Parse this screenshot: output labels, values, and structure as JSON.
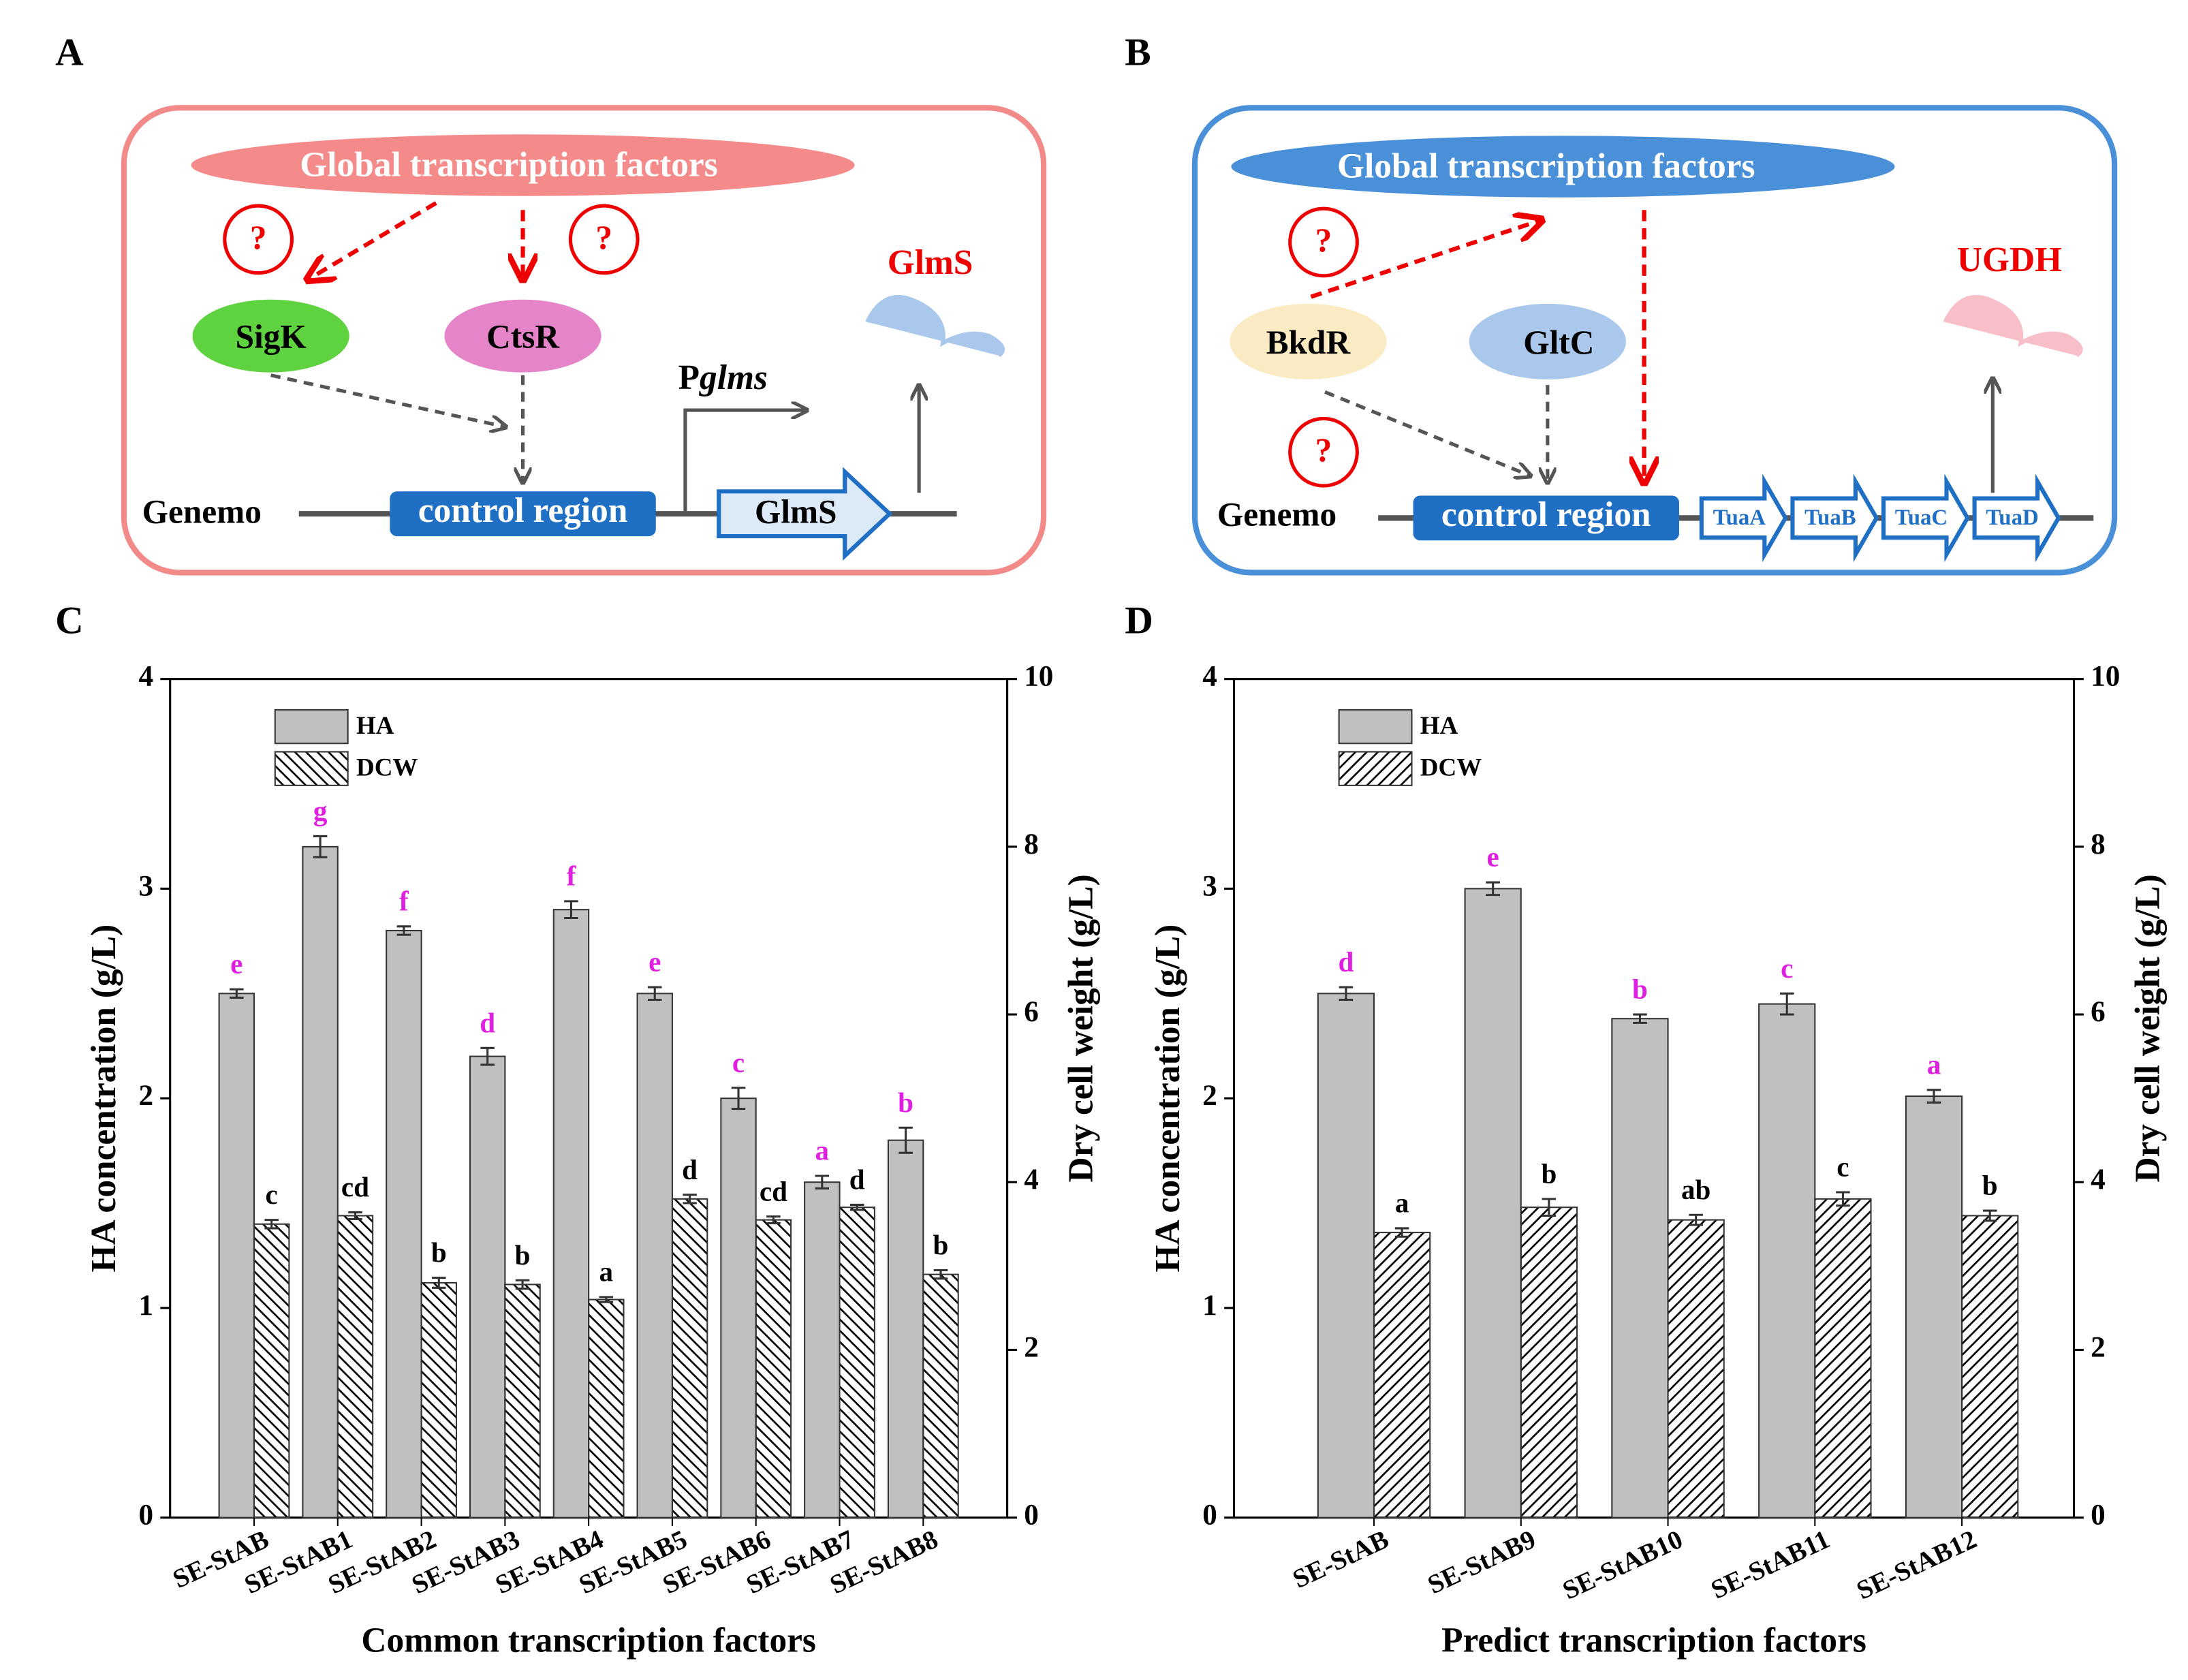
{
  "panels": [
    "A",
    "B",
    "C",
    "D"
  ],
  "diagram_a": {
    "cloud": "Global transcription factors",
    "questions": [
      "?",
      "?"
    ],
    "factors": [
      "SigK",
      "CtsR"
    ],
    "product": "GlmS",
    "promoter_p": "P",
    "promoter_name": "glms",
    "genome": "Genemo",
    "control": "control region",
    "gene": "GlmS"
  },
  "diagram_b": {
    "cloud": "Global transcription factors",
    "questions": [
      "?",
      "?"
    ],
    "factors": [
      "BkdR",
      "GltC"
    ],
    "product": "UGDH",
    "genome": "Genemo",
    "control": "control region",
    "genes": [
      "TuaA",
      "TuaB",
      "TuaC",
      "TuaD"
    ]
  },
  "chart_data": [
    {
      "type": "bar",
      "xlabel": "Common transcription factors",
      "ylabel": "HA concentration (g/L)",
      "y2label": "Dry cell weight (g/L)",
      "categories": [
        "SE-StAB",
        "SE-StAB1",
        "SE-StAB2",
        "SE-StAB3",
        "SE-StAB4",
        "SE-StAB5",
        "SE-StAB6",
        "SE-StAB7",
        "SE-StAB8"
      ],
      "ylim": [
        0,
        4
      ],
      "yticks": [
        0,
        1,
        2,
        3,
        4
      ],
      "y2lim": [
        0,
        10
      ],
      "y2ticks": [
        0,
        2,
        4,
        6,
        8,
        10
      ],
      "series": [
        {
          "name": "HA",
          "color": "#c0c0c0",
          "values": [
            2.5,
            3.2,
            2.8,
            2.2,
            2.9,
            2.5,
            2.0,
            1.6,
            1.8
          ],
          "errors": [
            0.02,
            0.05,
            0.02,
            0.04,
            0.04,
            0.03,
            0.05,
            0.03,
            0.06
          ],
          "annotations": [
            "e",
            "g",
            "f",
            "d",
            "f",
            "e",
            "c",
            "a",
            "b"
          ],
          "annotation_color": "#e020e0"
        },
        {
          "name": "DCW",
          "color": "#ffffff",
          "hatch": "backslash",
          "axis": "y2",
          "values": [
            3.5,
            3.6,
            2.8,
            2.78,
            2.6,
            3.8,
            3.55,
            3.7,
            2.9
          ],
          "errors": [
            0.05,
            0.04,
            0.06,
            0.05,
            0.03,
            0.05,
            0.04,
            0.03,
            0.05
          ],
          "annotations": [
            "c",
            "cd",
            "b",
            "b",
            "a",
            "d",
            "cd",
            "d",
            "b"
          ],
          "annotation_color": "#000000"
        }
      ]
    },
    {
      "type": "bar",
      "xlabel": "Predict transcription factors",
      "ylabel": "HA concentration (g/L)",
      "y2label": "Dry cell weight (g/L)",
      "categories": [
        "SE-StAB",
        "SE-StAB9",
        "SE-StAB10",
        "SE-StAB11",
        "SE-StAB12"
      ],
      "ylim": [
        0,
        4
      ],
      "yticks": [
        0,
        1,
        2,
        3,
        4
      ],
      "y2lim": [
        0,
        10
      ],
      "y2ticks": [
        0,
        2,
        4,
        6,
        8,
        10
      ],
      "series": [
        {
          "name": "HA",
          "color": "#c0c0c0",
          "values": [
            2.5,
            3.0,
            2.38,
            2.45,
            2.01
          ],
          "errors": [
            0.03,
            0.03,
            0.02,
            0.05,
            0.03
          ],
          "annotations": [
            "d",
            "e",
            "b",
            "c",
            "a"
          ],
          "annotation_color": "#e020e0"
        },
        {
          "name": "DCW",
          "color": "#ffffff",
          "hatch": "slash",
          "axis": "y2",
          "values": [
            3.4,
            3.7,
            3.55,
            3.8,
            3.6
          ],
          "errors": [
            0.05,
            0.1,
            0.06,
            0.08,
            0.06
          ],
          "annotations": [
            "a",
            "b",
            "ab",
            "c",
            "b"
          ],
          "annotation_color": "#000000"
        }
      ]
    }
  ]
}
